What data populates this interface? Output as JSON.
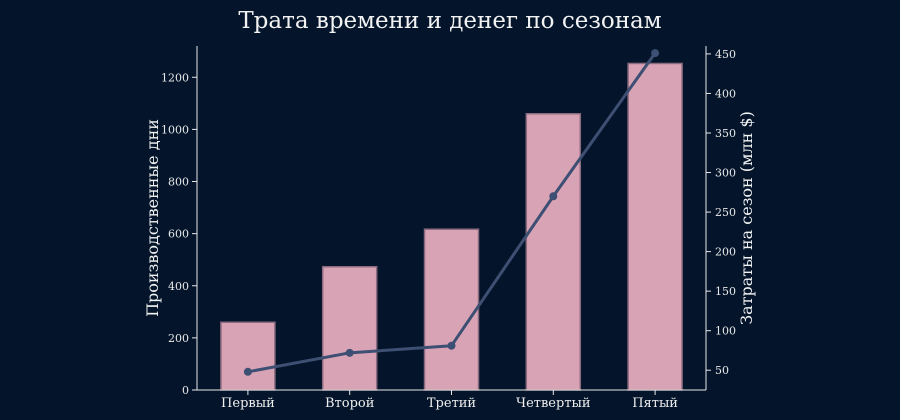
{
  "chart_data": {
    "type": "bar",
    "title": "Трата времени и денег по сезонам",
    "categories": [
      "Первый",
      "Второй",
      "Третий",
      "Четвертый",
      "Пятый"
    ],
    "series": [
      {
        "type": "bar",
        "axis": "left",
        "values": [
          260,
          473,
          617,
          1060,
          1253
        ],
        "color": "#d9a3b6"
      },
      {
        "type": "line",
        "axis": "right",
        "values": [
          48,
          72,
          81,
          270,
          451
        ],
        "color": "#3d4f72"
      }
    ],
    "ylabel": "Производственные дни",
    "ylabel_right": "Затраты на сезон (млн $)",
    "ylim": [
      0,
      1320
    ],
    "ylim_right": [
      25,
      460
    ],
    "yticks": [
      0,
      200,
      400,
      600,
      800,
      1000,
      1200
    ],
    "yticks_right": [
      50,
      100,
      150,
      200,
      250,
      300,
      350,
      400,
      450
    ],
    "grid": false,
    "background": "#04152b"
  }
}
